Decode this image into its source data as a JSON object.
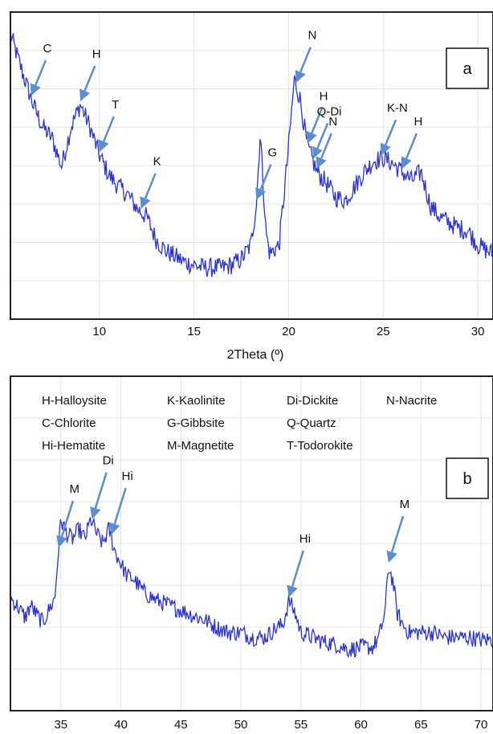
{
  "colors": {
    "trace": "#2a33d8",
    "arrow": "#5b8ed1",
    "frame": "#222222"
  },
  "legend_lines": [
    "H-Halloysite",
    "K-Kaolinite",
    "Di-Dickite",
    "N-Nacrite",
    "C-Chlorite",
    "G-Gibbsite",
    "Q-Quartz",
    "Hi-Hematite",
    "M-Magnetite",
    "T-Todorokite"
  ],
  "chart_data": [
    {
      "type": "line",
      "panel_label": "a",
      "xlabel": "2Theta (º)",
      "ylabel": "",
      "xlim": [
        5.3,
        30.8
      ],
      "ylim": [
        0,
        1
      ],
      "xticks": [
        10,
        15,
        20,
        25,
        30
      ],
      "grid": true,
      "x": [
        5.3,
        6,
        6.5,
        7,
        7.5,
        8,
        8.5,
        9,
        9.5,
        10,
        10.5,
        11,
        11.5,
        12,
        12.5,
        13,
        13.5,
        14,
        14.5,
        15,
        15.5,
        16,
        16.5,
        17,
        17.5,
        18,
        18.3,
        18.5,
        18.8,
        19,
        19.5,
        20,
        20.3,
        20.6,
        21,
        21.5,
        22,
        22.5,
        23,
        23.5,
        24,
        24.5,
        25,
        25.5,
        26,
        26.5,
        27,
        27.5,
        28,
        28.5,
        29,
        29.5,
        30,
        30.5,
        30.8
      ],
      "y": [
        0.95,
        0.8,
        0.7,
        0.62,
        0.58,
        0.48,
        0.62,
        0.7,
        0.62,
        0.52,
        0.45,
        0.41,
        0.38,
        0.33,
        0.3,
        0.22,
        0.18,
        0.16,
        0.14,
        0.13,
        0.12,
        0.12,
        0.12,
        0.13,
        0.15,
        0.2,
        0.35,
        0.6,
        0.25,
        0.17,
        0.2,
        0.55,
        0.79,
        0.72,
        0.55,
        0.46,
        0.42,
        0.37,
        0.36,
        0.41,
        0.46,
        0.5,
        0.51,
        0.49,
        0.46,
        0.43,
        0.46,
        0.34,
        0.3,
        0.28,
        0.26,
        0.25,
        0.2,
        0.18,
        0.17
      ],
      "annotations": [
        {
          "label": "C",
          "x": 6.4
        },
        {
          "label": "H",
          "x": 9.0
        },
        {
          "label": "T",
          "x": 10.0
        },
        {
          "label": "K",
          "x": 12.2
        },
        {
          "label": "G",
          "x": 18.3
        },
        {
          "label": "N",
          "x": 20.4
        },
        {
          "label": "H",
          "x": 21.0
        },
        {
          "label": "Q-Di",
          "x": 21.3
        },
        {
          "label": "N",
          "x": 21.5
        },
        {
          "label": "K-N",
          "x": 24.9
        },
        {
          "label": "H",
          "x": 26.0
        }
      ]
    },
    {
      "type": "line",
      "panel_label": "b",
      "xlabel": "",
      "ylabel": "",
      "xlim": [
        30.8,
        71
      ],
      "ylim": [
        0,
        1
      ],
      "xticks": [
        35,
        40,
        45,
        50,
        55,
        60,
        65,
        70
      ],
      "grid": true,
      "x": [
        30.8,
        31.5,
        32,
        32.5,
        33,
        33.5,
        34,
        34.5,
        35,
        35.5,
        36,
        36.5,
        37,
        37.5,
        38,
        38.5,
        39,
        39.5,
        40,
        40.5,
        41,
        42,
        43,
        44,
        45,
        46,
        47,
        48,
        49,
        50,
        51,
        52,
        53,
        53.5,
        54,
        54.5,
        55,
        56,
        57,
        58,
        59,
        60,
        61,
        61.5,
        62,
        62.3,
        62.7,
        63,
        63.5,
        64,
        65,
        66,
        67,
        68,
        69,
        70,
        71
      ],
      "y": [
        0.36,
        0.32,
        0.28,
        0.33,
        0.29,
        0.26,
        0.31,
        0.36,
        0.68,
        0.62,
        0.6,
        0.64,
        0.6,
        0.68,
        0.62,
        0.58,
        0.64,
        0.55,
        0.5,
        0.45,
        0.44,
        0.38,
        0.35,
        0.33,
        0.31,
        0.29,
        0.27,
        0.24,
        0.22,
        0.22,
        0.2,
        0.2,
        0.24,
        0.25,
        0.35,
        0.3,
        0.22,
        0.2,
        0.18,
        0.17,
        0.15,
        0.16,
        0.16,
        0.2,
        0.3,
        0.49,
        0.42,
        0.3,
        0.25,
        0.22,
        0.22,
        0.22,
        0.2,
        0.2,
        0.2,
        0.19,
        0.19
      ],
      "annotations": [
        {
          "label": "M",
          "x": 34.8
        },
        {
          "label": "Di",
          "x": 37.6
        },
        {
          "label": "Hi",
          "x": 39.2
        },
        {
          "label": "Hi",
          "x": 54.0
        },
        {
          "label": "M",
          "x": 62.3
        }
      ]
    }
  ]
}
